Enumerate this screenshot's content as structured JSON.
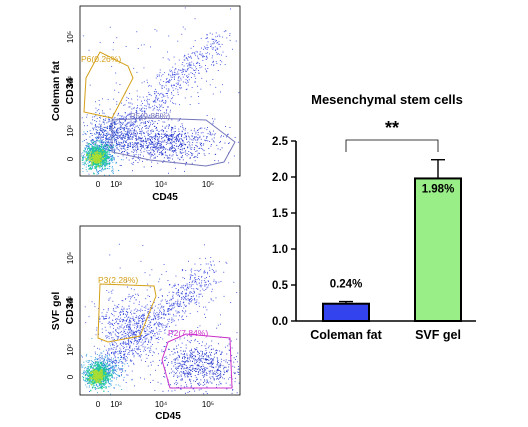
{
  "chart_data": [
    {
      "type": "scatter",
      "panel": "top-flow",
      "ylabel_sample": "Coleman fat",
      "ylabel_marker": "CD34",
      "xlabel": "CD45",
      "xticks": [
        "0",
        "10³",
        "10⁴",
        "10⁵"
      ],
      "yticks": [
        "0",
        "10³",
        "10⁴",
        "10⁵"
      ],
      "gates": [
        {
          "name": "P6",
          "label": "P6(0.26%)",
          "color": "#d4a017"
        },
        {
          "name": "P5",
          "label": "P5(9.86%)",
          "color": "#7777bb"
        }
      ]
    },
    {
      "type": "scatter",
      "panel": "bottom-flow",
      "ylabel_sample": "SVF gel",
      "ylabel_marker": "CD34",
      "xlabel": "CD45",
      "xticks": [
        "0",
        "10³",
        "10⁴",
        "10⁵"
      ],
      "yticks": [
        "0",
        "10³",
        "10⁴",
        "10⁵"
      ],
      "gates": [
        {
          "name": "P3",
          "label": "P3(2.28%)",
          "color": "#d4a017"
        },
        {
          "name": "P2",
          "label": "P2(7.84%)",
          "color": "#cc33cc"
        }
      ]
    },
    {
      "type": "bar",
      "title": "Mesenchymal stem cells",
      "categories": [
        "Coleman fat",
        "SVF gel"
      ],
      "values": [
        0.24,
        1.98
      ],
      "errors": [
        0.03,
        0.26
      ],
      "data_labels": [
        "0.24%",
        "1.98%"
      ],
      "colors": [
        "#3344ee",
        "#99ee88"
      ],
      "yticks": [
        "0.0",
        "0.5",
        "1.0",
        "1.5",
        "2.0",
        "2.5"
      ],
      "ylim": [
        0,
        2.5
      ],
      "significance": "**"
    }
  ]
}
